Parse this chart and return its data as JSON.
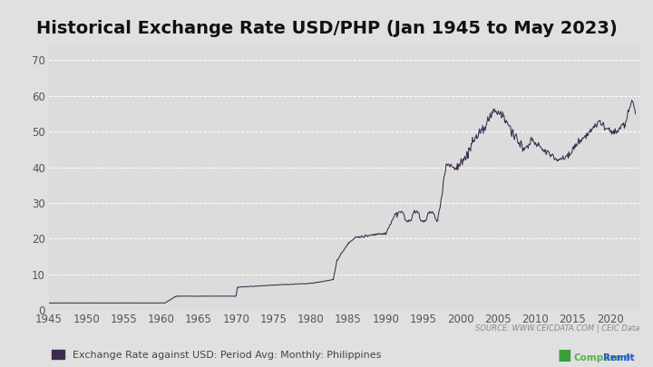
{
  "title": "Historical Exchange Rate USD/PHP (Jan 1945 to May 2023)",
  "line_color": "#3d2b4e",
  "background_color": "#e0e0e0",
  "plot_bg_color": "#dcdcdc",
  "legend_label": "Exchange Rate against USD: Period Avg: Monthly: Philippines",
  "source_text": "SOURCE: WWW.CEICDATA.COM | CEIC Data",
  "xlim": [
    1945,
    2024
  ],
  "ylim": [
    0,
    75
  ],
  "yticks": [
    0,
    10,
    20,
    30,
    40,
    50,
    60,
    70
  ],
  "xticks": [
    1945,
    1950,
    1955,
    1960,
    1965,
    1970,
    1975,
    1980,
    1985,
    1990,
    1995,
    2000,
    2005,
    2010,
    2015,
    2020
  ],
  "title_fontsize": 14,
  "tick_fontsize": 8.5,
  "legend_fontsize": 8,
  "source_fontsize": 6
}
